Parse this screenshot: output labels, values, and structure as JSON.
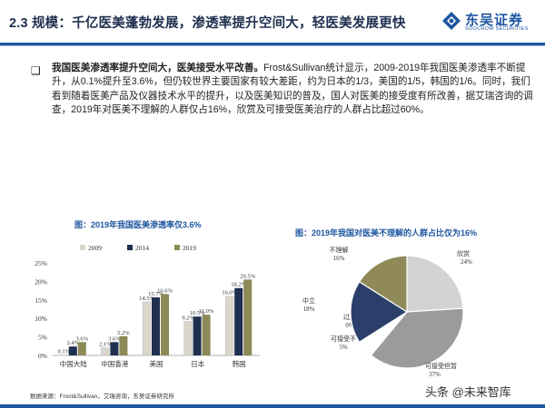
{
  "header": {
    "title": "2.3 规模：千亿医美蓬勃发展，渗透率提升空间大，轻医美发展更快",
    "brand_cn": "东吴证券",
    "brand_en": "SOOCHOW SECURITIES"
  },
  "body": {
    "bullet": "❑",
    "lead": "我国医美渗透率提升空间大，医美接受水平改善。",
    "text": "Frost&Sullivan统计显示，2009-2019年我国医美渗透率不断提升，从0.1%提升至3.6%，但仍较世界主要国家有较大差距，约为日本的1/3，美国的1/5，韩国的1/6。同时，我们看到随着医美产品及仪器技术水平的提升，以及医美知识的普及，国人对医美的接受度有所改善，据艾瑞咨询的调查，2019年对医美不理解的人群仅占16%，欣赏及可接受医美治疗的人群占比超过60%。"
  },
  "colors": {
    "brand": "#1e56a0",
    "s2009": "#d9d6cc",
    "s2014": "#1f2f4f",
    "s2019": "#8c8a56",
    "pie_a": "#d3d3d3",
    "pie_b": "#9b9b9b",
    "pie_c": "#2c3f6b",
    "pie_d": "#8f8a57",
    "pie_e": "#ffffff"
  },
  "chart_data": [
    {
      "type": "bar",
      "title": "图：2019年我国医美渗透率仅3.6%",
      "categories": [
        "中国大陆",
        "中国香港",
        "美国",
        "日本",
        "韩国"
      ],
      "series": [
        {
          "name": "2009",
          "values": [
            0.1,
            2.1,
            14.5,
            9.2,
            16.0
          ]
        },
        {
          "name": "2014",
          "values": [
            2.4,
            3.6,
            15.7,
            10.5,
            18.2
          ]
        },
        {
          "name": "2019",
          "values": [
            3.6,
            5.2,
            16.6,
            11.0,
            20.5
          ]
        }
      ],
      "labels": [
        [
          "0.1%",
          "2.4%",
          "3.6%"
        ],
        [
          "2.1%",
          "3.6%",
          "5.2%"
        ],
        [
          "14.5%",
          "15.7%",
          "16.6%"
        ],
        [
          "9.2%",
          "10.5%",
          "11.0%"
        ],
        [
          "16.0%",
          "18.2%",
          "20.5%"
        ]
      ],
      "yticks": [
        "0%",
        "5%",
        "10%",
        "15%",
        "20%",
        "25%"
      ],
      "ylim": [
        0,
        25
      ],
      "legend": "top"
    },
    {
      "type": "pie",
      "title": "图：2019年我国对医美不理解的人群占比仅为16%",
      "slices": [
        {
          "name": "欣赏",
          "value": 24,
          "label": "24%"
        },
        {
          "name": "可接受但暂",
          "value": 37,
          "label": "37%"
        },
        {
          "name": "可接受不",
          "value": 5,
          "label": "5%"
        },
        {
          "name": "过度",
          "value": 0,
          "label": "0%"
        },
        {
          "name": "中立",
          "value": 18,
          "label": "18%"
        },
        {
          "name": "不理解",
          "value": 16,
          "label": "16%"
        }
      ]
    }
  ],
  "footer": {
    "source": "数据来源：Frost&Sullivan，艾瑞咨询，东吴证券研究所",
    "watermark": "头条 @未来智库"
  }
}
